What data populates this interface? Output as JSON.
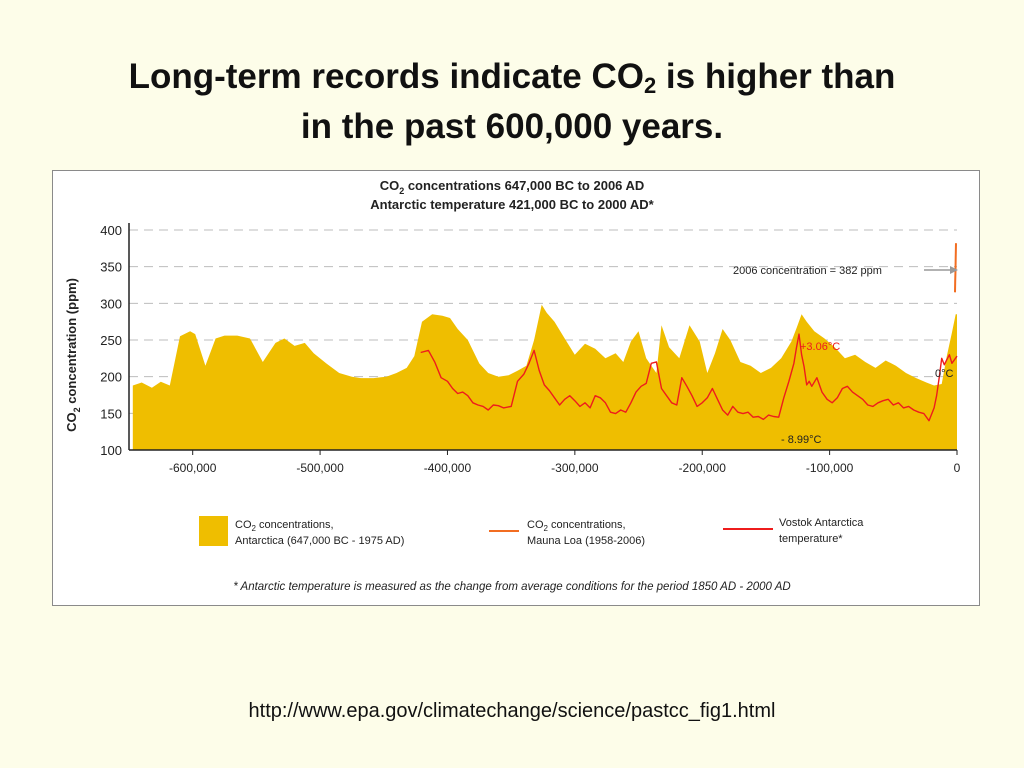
{
  "slide": {
    "title_part1": "Long-term records indicate CO",
    "title_sub": "2",
    "title_part2": " is higher than",
    "title_line2": "in the past 600,000 years.",
    "source_url": "http://www.epa.gov/climatechange/science/pastcc_fig1.html"
  },
  "chart_data": {
    "type": "area",
    "title_line1_a": "CO",
    "title_line1_sub": "2",
    "title_line1_b": " concentrations 647,000 BC to 2006 AD",
    "title_line2": "Antarctic temperature 421,000 BC to 2000 AD*",
    "ylabel_a": "CO",
    "ylabel_sub": "2",
    "ylabel_b": " concentration (ppm)",
    "ylim": [
      100,
      400
    ],
    "xlim": [
      -650000,
      0
    ],
    "y_ticks": [
      100,
      150,
      200,
      250,
      300,
      350,
      400
    ],
    "x_ticks": [
      {
        "value": -600000,
        "label": "-600,000"
      },
      {
        "value": -500000,
        "label": "-500,000"
      },
      {
        "value": -400000,
        "label": "-400,000"
      },
      {
        "value": -300000,
        "label": "-300,000"
      },
      {
        "value": -200000,
        "label": "-200,000"
      },
      {
        "value": -100000,
        "label": "-100,000"
      },
      {
        "value": 0,
        "label": "0"
      }
    ],
    "grid": "horizontal-dashed",
    "legend_position": "bottom",
    "colors": {
      "antarctica": "#efbe00",
      "mauna_loa": "#f26d21",
      "vostok": "#ee1c1c"
    },
    "series": [
      {
        "name_a": "CO",
        "name_sub": "2",
        "name_b": " concentrations,",
        "name_line2": "Antarctica (647,000 BC - 1975 AD)",
        "kind": "area",
        "x": [
          -647000,
          -640000,
          -632000,
          -625000,
          -618000,
          -610000,
          -602000,
          -598000,
          -590000,
          -582000,
          -575000,
          -565000,
          -555000,
          -545000,
          -535000,
          -528000,
          -520000,
          -512000,
          -505000,
          -495000,
          -485000,
          -475000,
          -468000,
          -458000,
          -448000,
          -440000,
          -432000,
          -426000,
          -420000,
          -412000,
          -404000,
          -398000,
          -392000,
          -384000,
          -375000,
          -368000,
          -360000,
          -352000,
          -345000,
          -338000,
          -332000,
          -326000,
          -322000,
          -316000,
          -308000,
          -300000,
          -292000,
          -284000,
          -276000,
          -268000,
          -262000,
          -256000,
          -250000,
          -244000,
          -240000,
          -236000,
          -232000,
          -226000,
          -218000,
          -210000,
          -202000,
          -196000,
          -190000,
          -184000,
          -178000,
          -170000,
          -162000,
          -154000,
          -146000,
          -138000,
          -130000,
          -126000,
          -122000,
          -118000,
          -112000,
          -104000,
          -96000,
          -88000,
          -80000,
          -72000,
          -64000,
          -56000,
          -48000,
          -40000,
          -32000,
          -24000,
          -18000,
          -12000,
          -8000,
          -4000,
          -1000,
          0
        ],
        "values": [
          188,
          192,
          185,
          193,
          188,
          255,
          262,
          258,
          215,
          252,
          256,
          256,
          252,
          220,
          246,
          252,
          242,
          246,
          232,
          218,
          205,
          200,
          198,
          198,
          200,
          205,
          212,
          228,
          275,
          285,
          283,
          280,
          265,
          250,
          218,
          205,
          200,
          202,
          208,
          215,
          250,
          298,
          287,
          275,
          252,
          230,
          245,
          238,
          225,
          232,
          220,
          248,
          262,
          225,
          215,
          205,
          270,
          240,
          225,
          270,
          248,
          205,
          232,
          265,
          250,
          220,
          215,
          205,
          212,
          225,
          248,
          266,
          285,
          275,
          262,
          252,
          240,
          225,
          230,
          220,
          212,
          222,
          215,
          205,
          198,
          192,
          188,
          190,
          228,
          260,
          285,
          285
        ]
      },
      {
        "name_a": "CO",
        "name_sub": "2",
        "name_b": " concentrations,",
        "name_line2": "Mauna Loa (1958-2006)",
        "kind": "line",
        "x": [
          -800,
          -600,
          -400,
          -200,
          0
        ],
        "values": [
          315,
          330,
          345,
          362,
          382
        ]
      },
      {
        "name": "Vostok Antarctica temperature*",
        "kind": "line",
        "axis_units": "°C change (plotted on right scale, unlabelled)",
        "x": [
          -421000,
          -415000,
          -410000,
          -405000,
          -400000,
          -396000,
          -392000,
          -388000,
          -384000,
          -380000,
          -376000,
          -372000,
          -368000,
          -364000,
          -360000,
          -356000,
          -350000,
          -345000,
          -340000,
          -336000,
          -332000,
          -328000,
          -324000,
          -320000,
          -316000,
          -312000,
          -308000,
          -304000,
          -300000,
          -296000,
          -292000,
          -288000,
          -284000,
          -280000,
          -276000,
          -272000,
          -268000,
          -264000,
          -260000,
          -256000,
          -252000,
          -248000,
          -244000,
          -240000,
          -236000,
          -232000,
          -228000,
          -224000,
          -220000,
          -216000,
          -212000,
          -208000,
          -204000,
          -200000,
          -196000,
          -192000,
          -188000,
          -184000,
          -180000,
          -176000,
          -172000,
          -168000,
          -164000,
          -160000,
          -156000,
          -152000,
          -148000,
          -144000,
          -140000,
          -136000,
          -132000,
          -128000,
          -126000,
          -124000,
          -122000,
          -120000,
          -118000,
          -116000,
          -114000,
          -110000,
          -106000,
          -102000,
          -98000,
          -94000,
          -90000,
          -86000,
          -82000,
          -78000,
          -74000,
          -70000,
          -66000,
          -62000,
          -58000,
          -54000,
          -50000,
          -46000,
          -42000,
          -38000,
          -34000,
          -30000,
          -26000,
          -22000,
          -18000,
          -16000,
          -14000,
          -12000,
          -10000,
          -8000,
          -6000,
          -4000,
          -2000,
          0
        ],
        "values": [
          0.5,
          0.8,
          -0.8,
          -3.0,
          -3.5,
          -4.5,
          -5.2,
          -5.0,
          -5.5,
          -6.5,
          -6.8,
          -7.0,
          -7.5,
          -6.8,
          -6.9,
          -7.2,
          -7.0,
          -3.5,
          -2.5,
          -1.0,
          0.8,
          -2.0,
          -4.0,
          -4.8,
          -5.8,
          -6.8,
          -6.0,
          -5.5,
          -6.2,
          -7.0,
          -6.5,
          -7.2,
          -5.5,
          -5.8,
          -6.5,
          -7.8,
          -8.0,
          -7.5,
          -7.8,
          -6.5,
          -5.0,
          -4.2,
          -3.8,
          -1.0,
          -0.8,
          -4.5,
          -5.5,
          -6.5,
          -6.8,
          -3.0,
          -4.2,
          -5.5,
          -7.0,
          -6.5,
          -5.8,
          -4.5,
          -6.0,
          -7.5,
          -8.2,
          -7.0,
          -7.8,
          -8.0,
          -7.8,
          -8.5,
          -8.4,
          -8.8,
          -8.2,
          -8.4,
          -8.5,
          -5.8,
          -3.5,
          -1.0,
          1.2,
          3.06,
          0.2,
          -1.5,
          -4.0,
          -3.5,
          -4.2,
          -3.0,
          -5.0,
          -6.0,
          -6.5,
          -5.8,
          -4.5,
          -4.2,
          -5.0,
          -5.5,
          -6.0,
          -6.8,
          -7.0,
          -6.5,
          -6.2,
          -6.0,
          -6.8,
          -6.5,
          -7.2,
          -7.0,
          -7.5,
          -7.8,
          -8.0,
          -8.99,
          -7.2,
          -5.5,
          -3.0,
          -0.3,
          -1.2,
          -0.5,
          0.2,
          -1.0,
          -0.5,
          0
        ]
      }
    ],
    "annotations": {
      "concentration_2006": "2006 concentration = 382 ppm",
      "temp_high": "+3.06°C",
      "temp_zero": "0°C",
      "temp_low": "- 8.99°C"
    },
    "footnote": "* Antarctic temperature is measured as the change from average conditions for the period 1850 AD - 2000 AD"
  }
}
